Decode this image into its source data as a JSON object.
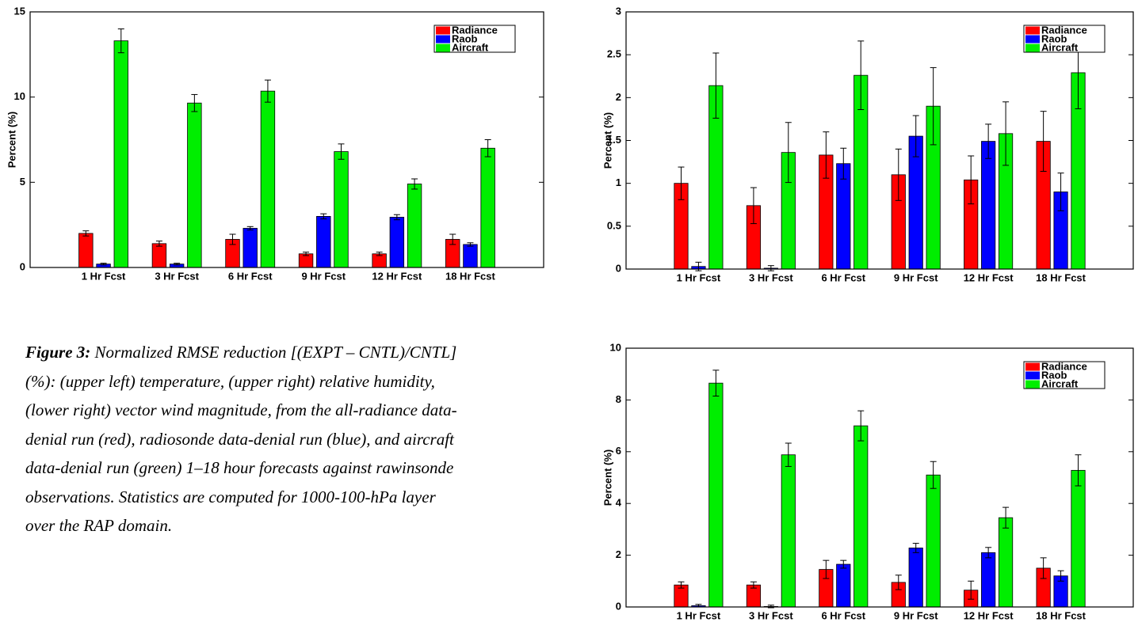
{
  "chart_data": [
    {
      "type": "bar",
      "ylabel": "Percent (%)",
      "categories": [
        "1 Hr Fcst",
        "3 Hr Fcst",
        "6 Hr Fcst",
        "9 Hr Fcst",
        "12 Hr Fcst",
        "18 Hr Fcst"
      ],
      "ylim": [
        0,
        15
      ],
      "yticks": [
        0,
        5,
        10,
        15
      ],
      "legend": "upper right",
      "series": [
        {
          "name": "Radiance",
          "color": "#ff0000",
          "values": [
            2.0,
            1.4,
            1.65,
            0.8,
            0.8,
            1.65
          ],
          "errors": [
            0.15,
            0.15,
            0.3,
            0.1,
            0.1,
            0.3
          ]
        },
        {
          "name": "Raob",
          "color": "#0000ff",
          "values": [
            0.2,
            0.2,
            2.3,
            3.0,
            2.95,
            1.35
          ],
          "errors": [
            0.05,
            0.05,
            0.1,
            0.15,
            0.15,
            0.1
          ]
        },
        {
          "name": "Aircraft",
          "color": "#00ee00",
          "values": [
            13.3,
            9.65,
            10.35,
            6.8,
            4.9,
            7.0
          ],
          "errors": [
            0.7,
            0.5,
            0.65,
            0.45,
            0.3,
            0.5
          ]
        }
      ]
    },
    {
      "type": "bar",
      "ylabel": "Percent (%)",
      "categories": [
        "1 Hr Fcst",
        "3 Hr Fcst",
        "6 Hr Fcst",
        "9 Hr Fcst",
        "12 Hr Fcst",
        "18 Hr Fcst"
      ],
      "ylim": [
        0,
        3
      ],
      "yticks": [
        0,
        0.5,
        1,
        1.5,
        2,
        2.5,
        3
      ],
      "legend": "upper right",
      "series": [
        {
          "name": "Radiance",
          "color": "#ff0000",
          "values": [
            1.0,
            0.74,
            1.33,
            1.1,
            1.04,
            1.49
          ],
          "errors": [
            0.19,
            0.21,
            0.27,
            0.3,
            0.28,
            0.35
          ]
        },
        {
          "name": "Raob",
          "color": "#0000ff",
          "values": [
            0.03,
            0.01,
            1.23,
            1.55,
            1.49,
            0.9
          ],
          "errors": [
            0.05,
            0.03,
            0.18,
            0.24,
            0.2,
            0.22
          ]
        },
        {
          "name": "Aircraft",
          "color": "#00ee00",
          "values": [
            2.14,
            1.36,
            2.26,
            1.9,
            1.58,
            2.29
          ],
          "errors": [
            0.38,
            0.35,
            0.4,
            0.45,
            0.37,
            0.42
          ]
        }
      ]
    },
    {
      "type": "bar",
      "ylabel": "Percent (%)",
      "categories": [
        "1 Hr Fcst",
        "3 Hr Fcst",
        "6 Hr Fcst",
        "9 Hr Fcst",
        "12 Hr Fcst",
        "18 Hr Fcst"
      ],
      "ylim": [
        0,
        10
      ],
      "yticks": [
        0,
        2,
        4,
        6,
        8,
        10
      ],
      "legend": "upper right",
      "series": [
        {
          "name": "Radiance",
          "color": "#ff0000",
          "values": [
            0.85,
            0.85,
            1.45,
            0.95,
            0.65,
            1.5
          ],
          "errors": [
            0.12,
            0.12,
            0.35,
            0.28,
            0.35,
            0.4
          ]
        },
        {
          "name": "Raob",
          "color": "#0000ff",
          "values": [
            0.05,
            0.02,
            1.65,
            2.28,
            2.1,
            1.2
          ],
          "errors": [
            0.05,
            0.05,
            0.15,
            0.18,
            0.2,
            0.2
          ]
        },
        {
          "name": "Aircraft",
          "color": "#00ee00",
          "values": [
            8.65,
            5.88,
            7.0,
            5.1,
            3.45,
            5.28
          ],
          "errors": [
            0.5,
            0.45,
            0.58,
            0.52,
            0.4,
            0.6
          ]
        }
      ]
    }
  ],
  "caption": {
    "label": "Figure 3:",
    "lines": [
      "Normalized RMSE reduction [(EXPT – CNTL)/CNTL]",
      "(%): (upper left) temperature, (upper right) relative humidity,",
      "(lower right) vector wind magnitude, from the all-radiance data-",
      "denial run (red), radiosonde data-denial run (blue), and aircraft",
      "data-denial run (green) 1–18 hour forecasts against rawinsonde",
      "observations. Statistics are computed for 1000-100-hPa layer",
      "over the RAP domain."
    ]
  }
}
